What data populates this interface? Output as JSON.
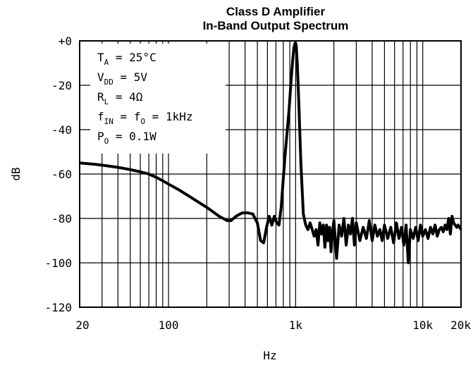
{
  "chart_data": {
    "type": "line",
    "title": "Class D Amplifier",
    "subtitle": "In-Band Output Spectrum",
    "xlabel": "Hz",
    "ylabel": "dB",
    "x_scale": "log",
    "xlim": [
      20,
      20000
    ],
    "ylim": [
      -120,
      0
    ],
    "grid": true,
    "x_ticks": [
      {
        "value": 20,
        "label": "20"
      },
      {
        "value": 100,
        "label": "100"
      },
      {
        "value": 1000,
        "label": "1k"
      },
      {
        "value": 10000,
        "label": "10k"
      },
      {
        "value": 20000,
        "label": "20k"
      }
    ],
    "y_ticks": [
      {
        "value": 0,
        "label": "+0"
      },
      {
        "value": -20,
        "label": "-20"
      },
      {
        "value": -40,
        "label": "-40"
      },
      {
        "value": -60,
        "label": "-60"
      },
      {
        "value": -80,
        "label": "-80"
      },
      {
        "value": -100,
        "label": "-100"
      },
      {
        "value": -120,
        "label": "-120"
      }
    ],
    "annotations": [
      {
        "main": "T",
        "sub": "A",
        "rest": " = 25°C"
      },
      {
        "main": "V",
        "sub": "DD",
        "rest": " = 5V"
      },
      {
        "main": "R",
        "sub": "L",
        "rest": " = 4Ω"
      },
      {
        "main": "f",
        "sub": "IN",
        "rest": " = f",
        "sub2": "O",
        "rest2": " = 1kHz"
      },
      {
        "main": "P",
        "sub": "O",
        "rest": " = 0.1W"
      }
    ],
    "series": [
      {
        "x": [
          20,
          25,
          30,
          40,
          50,
          60,
          70,
          80,
          90,
          100,
          120,
          150,
          200,
          250,
          290,
          310,
          340,
          380,
          420,
          460,
          500,
          530,
          560,
          590,
          620,
          650,
          680,
          710,
          740,
          770,
          800,
          830,
          860,
          890,
          920,
          950,
          970,
          990,
          1000,
          1010,
          1030,
          1060,
          1100,
          1150,
          1200,
          1250,
          1300,
          1350,
          1400,
          1450,
          1500,
          1550,
          1600,
          1650,
          1700,
          1750,
          1800,
          1850,
          1900,
          1950,
          2000,
          2100,
          2200,
          2300,
          2400,
          2500,
          2600,
          2700,
          2800,
          2900,
          3000,
          3200,
          3400,
          3600,
          3800,
          4000,
          4200,
          4400,
          4600,
          4800,
          5000,
          5300,
          5600,
          5900,
          6200,
          6500,
          6800,
          7100,
          7400,
          7700,
          8000,
          8400,
          8800,
          9200,
          9600,
          10000,
          10500,
          11000,
          11500,
          12000,
          12500,
          13000,
          13500,
          14000,
          14500,
          15000,
          15500,
          16000,
          16500,
          17000,
          17500,
          18000,
          18500,
          19000,
          19500,
          20000
        ],
        "y": [
          -55,
          -55.5,
          -56,
          -57,
          -58,
          -59,
          -60,
          -61.5,
          -63,
          -64.5,
          -67,
          -70.5,
          -75,
          -79,
          -81,
          -81,
          -79,
          -77.5,
          -77.5,
          -78,
          -82,
          -90,
          -91,
          -84,
          -79,
          -83,
          -79,
          -82,
          -83,
          -75,
          -62,
          -50,
          -40,
          -30,
          -18,
          -8,
          -3,
          -1,
          -1,
          -2,
          -10,
          -28,
          -55,
          -78,
          -83,
          -85,
          -82,
          -85,
          -88,
          -85,
          -92,
          -82,
          -87,
          -83,
          -93,
          -83,
          -90,
          -84,
          -95,
          -86,
          -81,
          -98,
          -83,
          -88,
          -80,
          -92,
          -83,
          -87,
          -80,
          -92,
          -82,
          -90,
          -84,
          -89,
          -81,
          -90,
          -83,
          -88,
          -85,
          -90,
          -83,
          -89,
          -84,
          -91,
          -82,
          -89,
          -84,
          -92,
          -83,
          -100,
          -85,
          -89,
          -84,
          -90,
          -83,
          -88,
          -85,
          -89,
          -84,
          -87,
          -83,
          -88,
          -85,
          -84,
          -86,
          -83,
          -85,
          -80,
          -87,
          -79,
          -82,
          -83,
          -84,
          -83,
          -84,
          -85
        ]
      }
    ]
  }
}
